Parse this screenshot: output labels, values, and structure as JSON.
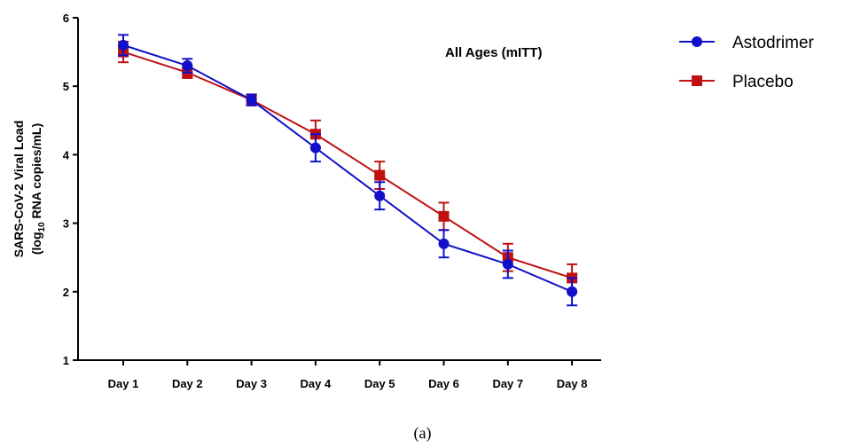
{
  "caption": "(a)",
  "chart_data": {
    "type": "line",
    "subtitle": "All Ages (mITT)",
    "ylabel_line1": "SARS-CoV-2 Viral Load",
    "ylabel_line2_prefix": "(log",
    "ylabel_line2_sub": "10",
    "ylabel_line2_suffix": " RNA copies/mL)",
    "categories": [
      "Day 1",
      "Day 2",
      "Day 3",
      "Day 4",
      "Day 5",
      "Day 6",
      "Day 7",
      "Day 8"
    ],
    "ylim": [
      1,
      6
    ],
    "yticks": [
      "1",
      "2",
      "3",
      "4",
      "5",
      "6"
    ],
    "grid": false,
    "legend_position": "top-right",
    "series": [
      {
        "name": "Astodrimer",
        "color": "#1010c8",
        "marker": "circle",
        "values": [
          5.6,
          5.3,
          4.8,
          4.1,
          3.4,
          2.7,
          2.4,
          2.0
        ],
        "error": [
          0.15,
          0.1,
          0.08,
          0.2,
          0.2,
          0.2,
          0.2,
          0.2
        ]
      },
      {
        "name": "Placebo",
        "color": "#c01010",
        "marker": "square",
        "values": [
          5.5,
          5.2,
          4.8,
          4.3,
          3.7,
          3.1,
          2.5,
          2.2
        ],
        "error": [
          0.15,
          0.08,
          0.08,
          0.2,
          0.2,
          0.2,
          0.2,
          0.2
        ]
      }
    ]
  }
}
